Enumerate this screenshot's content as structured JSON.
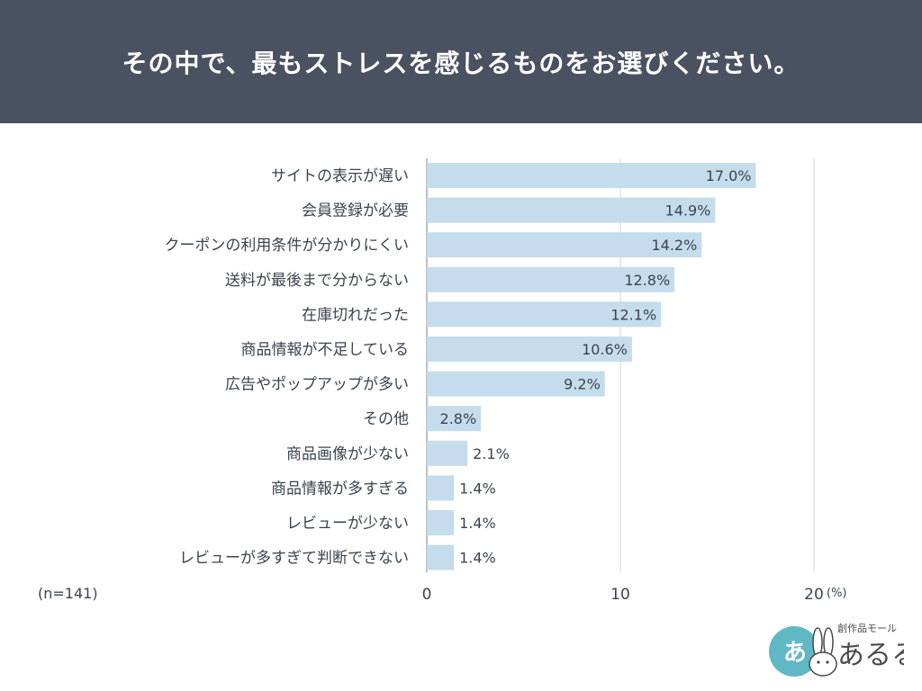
{
  "header": {
    "title": "その中で、最もストレスを感じるものをお選びください。"
  },
  "chart_data": {
    "type": "bar",
    "orientation": "horizontal",
    "title": "その中で、最もストレスを感じるものをお選びください。",
    "categories": [
      "サイトの表示が遅い",
      "会員登録が必要",
      "クーポンの利用条件が分かりにくい",
      "送料が最後まで分からない",
      "在庫切れだった",
      "商品情報が不足している",
      "広告やポップアップが多い",
      "その他",
      "商品画像が少ない",
      "商品情報が多すぎる",
      "レビューが少ない",
      "レビューが多すぎて判断できない"
    ],
    "values": [
      17.0,
      14.9,
      14.2,
      12.8,
      12.1,
      10.6,
      9.2,
      2.8,
      2.1,
      1.4,
      1.4,
      1.4
    ],
    "value_labels": [
      "17.0%",
      "14.9%",
      "14.2%",
      "12.8%",
      "12.1%",
      "10.6%",
      "9.2%",
      "2.8%",
      "2.1%",
      "1.4%",
      "1.4%",
      "1.4%"
    ],
    "xlim": [
      0,
      20
    ],
    "xticks": [
      "0",
      "10",
      "20"
    ],
    "unit": "(%)",
    "grid": true,
    "bar_color": "#c5dcec",
    "grid_color": "#d0d4d8"
  },
  "note": "(n=141)",
  "logo": {
    "tagline": "創作品モール",
    "name": "あるる",
    "circle_text": "あ"
  }
}
